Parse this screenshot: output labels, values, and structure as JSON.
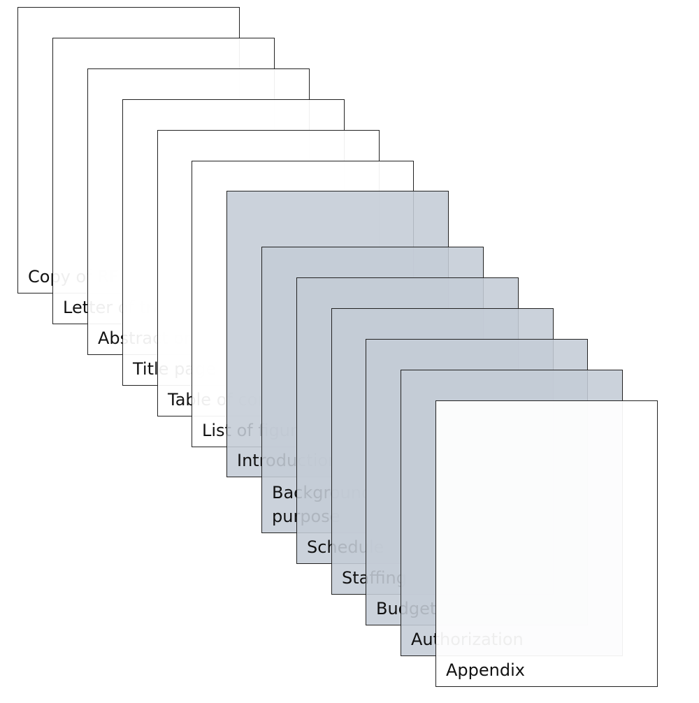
{
  "pages": [
    {
      "label": "Copy of RFP (optional)",
      "shade": "white"
    },
    {
      "label": "Letter of transmittal",
      "shade": "white"
    },
    {
      "label": "Abstract or summary",
      "shade": "white"
    },
    {
      "label": "Title page",
      "shade": "white"
    },
    {
      "label": "Table of contents",
      "shade": "white"
    },
    {
      "label": "List of figures",
      "shade": "white"
    },
    {
      "label": "Introduction",
      "shade": "gray"
    },
    {
      "label": "Background, problem,\npurpose",
      "shade": "gray"
    },
    {
      "label": "Schedule",
      "shade": "gray"
    },
    {
      "label": "Staffing",
      "shade": "gray"
    },
    {
      "label": "Budget",
      "shade": "gray"
    },
    {
      "label": "Authorization",
      "shade": "gray"
    },
    {
      "label": "Appendix",
      "shade": "white"
    }
  ],
  "colors": {
    "white_fill": "#ffffff",
    "gray_fill": "#c4ccd6",
    "border": "#222222"
  }
}
